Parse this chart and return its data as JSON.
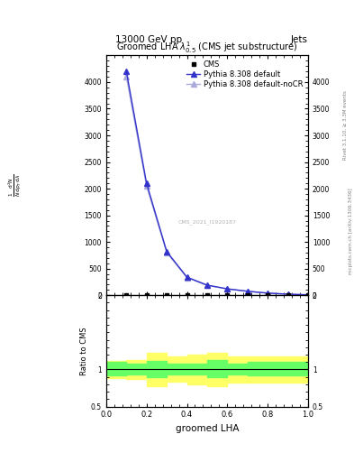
{
  "title_top": "13000 GeV pp",
  "title_right": "Jets",
  "plot_title": "Groomed LHA $\\lambda^{1}_{0.5}$ (CMS jet substructure)",
  "xlabel": "groomed LHA",
  "ylabel_ratio": "Ratio to CMS",
  "watermark": "CMS_2021_I1920187",
  "rivet_text": "Rivet 3.1.10, ≥ 3.3M events",
  "mcplots_text": "mcplots.cern.ch [arXiv:1306.3436]",
  "x_data": [
    0.1,
    0.2,
    0.3,
    0.4,
    0.5,
    0.6,
    0.7,
    0.8,
    0.9,
    1.0
  ],
  "pythia_default_y": [
    4200,
    2100,
    820,
    340,
    190,
    120,
    75,
    40,
    20,
    8
  ],
  "pythia_nocr_y": [
    4100,
    2050,
    800,
    330,
    185,
    118,
    73,
    39,
    19,
    7
  ],
  "cms_y": [
    5,
    5,
    5,
    5,
    5,
    5,
    5,
    5,
    5,
    5
  ],
  "ratio_x_edges": [
    0.0,
    0.05,
    0.1,
    0.15,
    0.2,
    0.25,
    0.3,
    0.35,
    0.4,
    0.45,
    0.5,
    0.55,
    0.6,
    0.65,
    0.7,
    0.75,
    0.8,
    0.85,
    0.9,
    0.95,
    1.0
  ],
  "ratio_green_upper": [
    1.1,
    1.1,
    1.08,
    1.08,
    1.12,
    1.12,
    1.08,
    1.08,
    1.08,
    1.08,
    1.13,
    1.13,
    1.08,
    1.08,
    1.1,
    1.1,
    1.1,
    1.1,
    1.1,
    1.1,
    1.1
  ],
  "ratio_green_lower": [
    0.92,
    0.92,
    0.93,
    0.93,
    0.9,
    0.9,
    0.93,
    0.93,
    0.93,
    0.93,
    0.9,
    0.9,
    0.93,
    0.93,
    0.92,
    0.92,
    0.92,
    0.92,
    0.92,
    0.92,
    0.92
  ],
  "ratio_yellow_upper": [
    1.12,
    1.12,
    1.13,
    1.13,
    1.22,
    1.22,
    1.17,
    1.17,
    1.2,
    1.2,
    1.22,
    1.22,
    1.18,
    1.18,
    1.18,
    1.18,
    1.18,
    1.18,
    1.18,
    1.18,
    1.18
  ],
  "ratio_yellow_lower": [
    0.88,
    0.88,
    0.87,
    0.87,
    0.77,
    0.77,
    0.83,
    0.83,
    0.8,
    0.8,
    0.77,
    0.77,
    0.82,
    0.82,
    0.82,
    0.82,
    0.82,
    0.82,
    0.82,
    0.82,
    0.82
  ],
  "ylim_main": [
    0,
    4500
  ],
  "yticks_main": [
    0,
    500,
    1000,
    1500,
    2000,
    2500,
    3000,
    3500,
    4000
  ],
  "ylim_ratio": [
    0.5,
    2.0
  ],
  "xlim": [
    0.0,
    1.0
  ],
  "color_pythia_default": "#3333cc",
  "color_pythia_nocr": "#aaaadd",
  "color_cms": "#000000",
  "color_green": "#66ff66",
  "color_yellow": "#ffff66",
  "background_color": "#ffffff"
}
